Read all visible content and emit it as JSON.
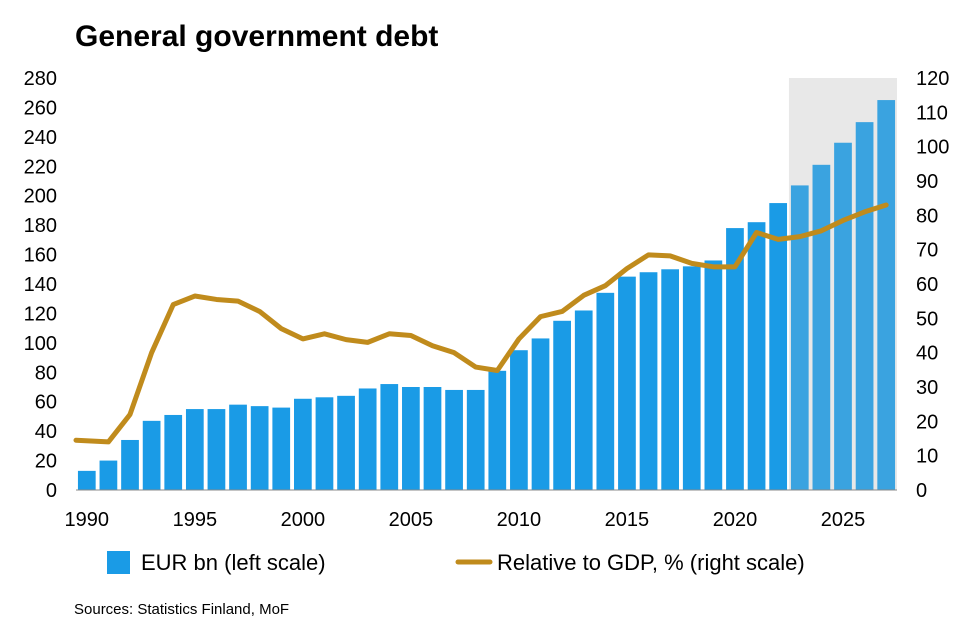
{
  "chart_data": {
    "type": "bar+line",
    "title": "General government debt",
    "source": "Sources: Statistics Finland, MoF",
    "years": [
      1990,
      1991,
      1992,
      1993,
      1994,
      1995,
      1996,
      1997,
      1998,
      1999,
      2000,
      2001,
      2002,
      2003,
      2004,
      2005,
      2006,
      2007,
      2008,
      2009,
      2010,
      2011,
      2012,
      2013,
      2014,
      2015,
      2016,
      2017,
      2018,
      2019,
      2020,
      2021,
      2022,
      2023,
      2024,
      2025,
      2026,
      2027
    ],
    "x_tick_labels": [
      "1990",
      "1995",
      "2000",
      "2005",
      "2010",
      "2015",
      "2020",
      "2025"
    ],
    "forecast_from_year": 2023,
    "series": [
      {
        "name": "EUR bn (left scale)",
        "type": "bar",
        "axis": "left",
        "color": "#1a9be6",
        "forecast_color": "#3aa3e0",
        "values": [
          13,
          20,
          34,
          47,
          51,
          55,
          55,
          58,
          57,
          56,
          62,
          63,
          64,
          69,
          72,
          70,
          70,
          68,
          68,
          81,
          95,
          103,
          115,
          122,
          134,
          145,
          148,
          150,
          152,
          156,
          178,
          182,
          195,
          207,
          221,
          236,
          250,
          265
        ]
      },
      {
        "name": "Relative to GDP, % (right scale)",
        "type": "line",
        "axis": "right",
        "color": "#c08b1c",
        "values": [
          14.5,
          14,
          22,
          40,
          54,
          56.5,
          55.5,
          55,
          52,
          47,
          44,
          45.5,
          43.8,
          43,
          45.5,
          45,
          42,
          40,
          35.8,
          34.8,
          44,
          50.5,
          52,
          56.7,
          59.5,
          64.5,
          68.5,
          68.2,
          66,
          65,
          65,
          75,
          73,
          73.8,
          75.5,
          78.5,
          81,
          83
        ]
      }
    ],
    "left_axis": {
      "min": 0,
      "max": 280,
      "step": 20,
      "ticks": [
        "0",
        "20",
        "40",
        "60",
        "80",
        "100",
        "120",
        "140",
        "160",
        "180",
        "200",
        "220",
        "240",
        "260",
        "280"
      ]
    },
    "right_axis": {
      "min": 0,
      "max": 120,
      "step": 10,
      "ticks": [
        "0",
        "10",
        "20",
        "30",
        "40",
        "50",
        "60",
        "70",
        "80",
        "90",
        "100",
        "110",
        "120"
      ]
    },
    "forecast_shading_color": "#e8e8e8",
    "legend_position": "bottom"
  }
}
